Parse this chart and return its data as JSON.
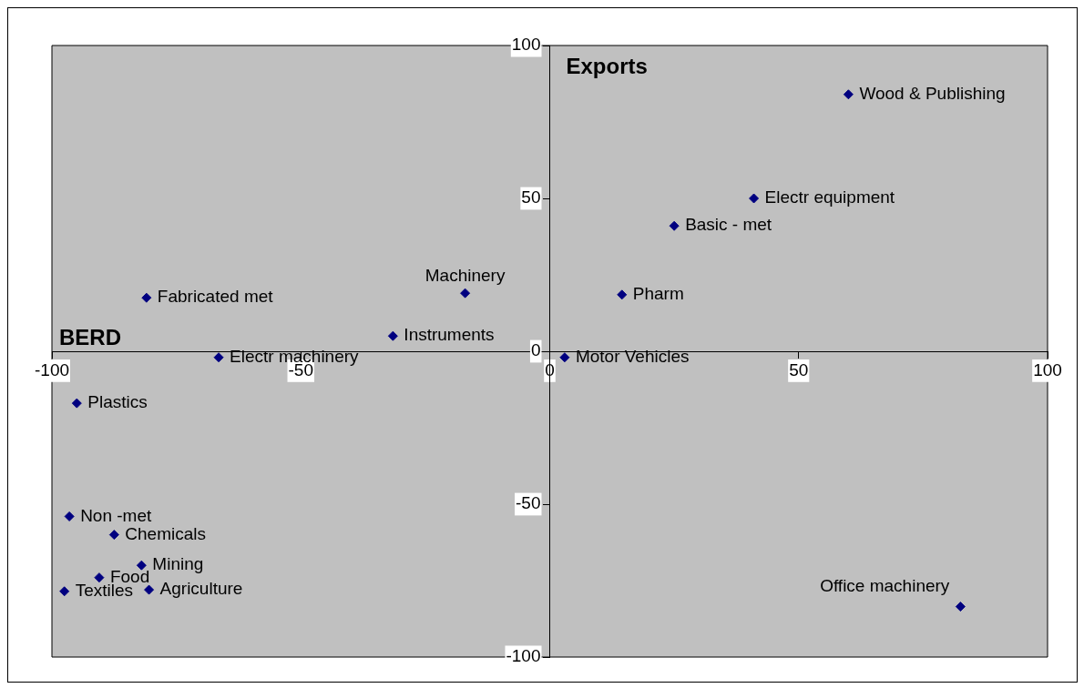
{
  "chart_data": {
    "type": "scatter",
    "xlabel": "BERD",
    "ylabel": "Exports",
    "x": [
      60,
      41,
      25,
      14.5,
      -17,
      -31.5,
      -81,
      -66.5,
      3,
      -95,
      -96.5,
      -87.5,
      -82,
      -90.5,
      -80.5,
      -97.5,
      82.5
    ],
    "series": [
      {
        "color": "#000080",
        "values": [
          84,
          50,
          41,
          18.5,
          19,
          5,
          17.5,
          -2,
          -2,
          -17,
          -54,
          -60,
          -70,
          -74,
          -78,
          -78.5,
          -83.5
        ],
        "value_labels": [
          "Wood & Publishing",
          "Electr equipment",
          "Basic - met",
          "Pharm",
          "Machinery",
          "Instruments",
          "Fabricated met",
          "Electr machinery",
          "Motor Vehicles",
          "Plastics",
          "Non -met",
          "Chemicals",
          "Mining",
          "Food",
          "Agriculture",
          "Textiles",
          "Office machinery"
        ]
      }
    ],
    "xlim": [
      -100,
      100
    ],
    "ylim": [
      -100,
      100
    ],
    "xticks": [
      -100,
      -50,
      0,
      50,
      100
    ],
    "yticks": [
      -100,
      -50,
      0,
      50,
      100
    ],
    "grid": false,
    "legend": false,
    "marker": "diamond"
  }
}
